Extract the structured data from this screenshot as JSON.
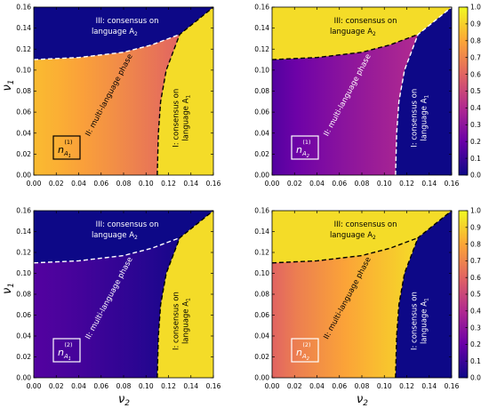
{
  "chart_data": [
    {
      "type": "heatmap",
      "panel": "top-left",
      "series_label": "n_{A_1}^{(1)}",
      "label_main": "n",
      "label_sub": "A",
      "label_subsub": "1",
      "label_sup": "(1)",
      "phase_values": {
        "consensus_A1": 0.93,
        "multi_language": "0.60-0.85",
        "consensus_A2": 0.0
      },
      "colorbar": false
    },
    {
      "type": "heatmap",
      "panel": "top-right",
      "series_label": "n_{A_2}^{(1)}",
      "label_main": "n",
      "label_sub": "A",
      "label_subsub": "2",
      "label_sup": "(1)",
      "phase_values": {
        "consensus_A1": 0.0,
        "multi_language": "0.15-0.40",
        "consensus_A2": 0.93
      },
      "colorbar": true
    },
    {
      "type": "heatmap",
      "panel": "bottom-left",
      "series_label": "n_{A_1}^{(2)}",
      "label_main": "n",
      "label_sub": "A",
      "label_subsub": "1",
      "label_sup": "(2)",
      "phase_values": {
        "consensus_A1": 0.93,
        "multi_language": "0.02-0.15",
        "consensus_A2": 0.0
      },
      "colorbar": false
    },
    {
      "type": "heatmap",
      "panel": "bottom-right",
      "series_label": "n_{A_2}^{(2)}",
      "label_main": "n",
      "label_sub": "A",
      "label_subsub": "2",
      "label_sup": "(2)",
      "phase_values": {
        "consensus_A1": 0.0,
        "multi_language": "0.60-0.93",
        "consensus_A2": 0.93
      },
      "colorbar": true
    }
  ],
  "axes": {
    "xlabel": "ν",
    "xlabel_sub": "2",
    "ylabel": "ν",
    "ylabel_sub": "1",
    "xlim": [
      0.0,
      0.16
    ],
    "ylim": [
      0.0,
      0.16
    ],
    "xticks": [
      "0.00",
      "0.02",
      "0.04",
      "0.06",
      "0.08",
      "0.10",
      "0.12",
      "0.14",
      "0.16"
    ],
    "yticks": [
      "0.00",
      "0.02",
      "0.04",
      "0.06",
      "0.08",
      "0.10",
      "0.12",
      "0.14",
      "0.16"
    ]
  },
  "boundaries": {
    "upper": [
      [
        0.0,
        0.11
      ],
      [
        0.04,
        0.112
      ],
      [
        0.08,
        0.117
      ],
      [
        0.105,
        0.124
      ],
      [
        0.13,
        0.134
      ]
    ],
    "right": [
      [
        0.11,
        0.0
      ],
      [
        0.111,
        0.04
      ],
      [
        0.113,
        0.07
      ],
      [
        0.118,
        0.1
      ],
      [
        0.13,
        0.134
      ],
      [
        0.16,
        0.16
      ]
    ]
  },
  "annotations": {
    "phase3_line1": "III: consensus on",
    "phase3_line2": "language A",
    "phase3_sub": "2",
    "phase2": "II: multi-language phase",
    "phase1_line1": "I: consensus on",
    "phase1_line2": "language A",
    "phase1_sub": "1"
  },
  "colorbar": {
    "ticks": [
      "0.0",
      "0.1",
      "0.2",
      "0.3",
      "0.4",
      "0.5",
      "0.6",
      "0.7",
      "0.8",
      "0.9",
      "1.0"
    ],
    "range": [
      0.0,
      1.0
    ],
    "colormap": "plasma",
    "colors": [
      "#0d0887",
      "#6a00a8",
      "#b12a90",
      "#e16462",
      "#fca636",
      "#f0f921"
    ]
  }
}
